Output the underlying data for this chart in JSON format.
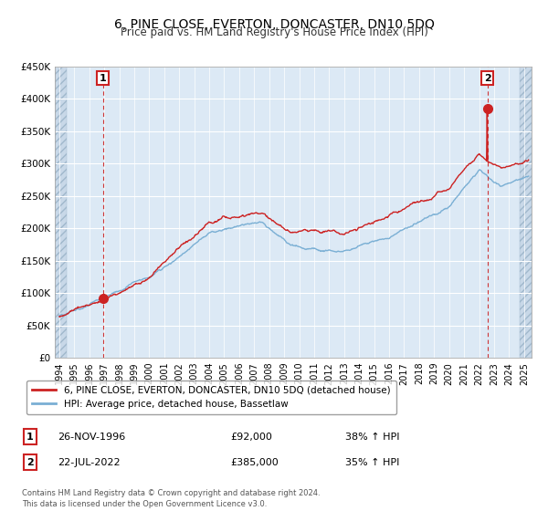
{
  "title": "6, PINE CLOSE, EVERTON, DONCASTER, DN10 5DQ",
  "subtitle": "Price paid vs. HM Land Registry's House Price Index (HPI)",
  "ylim": [
    0,
    450000
  ],
  "yticks": [
    0,
    50000,
    100000,
    150000,
    200000,
    250000,
    300000,
    350000,
    400000,
    450000
  ],
  "ytick_labels": [
    "£0",
    "£50K",
    "£100K",
    "£150K",
    "£200K",
    "£250K",
    "£300K",
    "£350K",
    "£400K",
    "£450K"
  ],
  "xlim_start": 1993.7,
  "xlim_end": 2025.5,
  "xticks": [
    1994,
    1995,
    1996,
    1997,
    1998,
    1999,
    2000,
    2001,
    2002,
    2003,
    2004,
    2005,
    2006,
    2007,
    2008,
    2009,
    2010,
    2011,
    2012,
    2013,
    2014,
    2015,
    2016,
    2017,
    2018,
    2019,
    2020,
    2021,
    2022,
    2023,
    2024,
    2025
  ],
  "sale1_date": 1996.91,
  "sale1_price": 92000,
  "sale1_label": "1",
  "sale1_text": "26-NOV-1996",
  "sale1_amount": "£92,000",
  "sale1_hpi": "38% ↑ HPI",
  "sale2_date": 2022.55,
  "sale2_price": 385000,
  "sale2_label": "2",
  "sale2_text": "22-JUL-2022",
  "sale2_amount": "£385,000",
  "sale2_hpi": "35% ↑ HPI",
  "hpi_color": "#7aafd4",
  "price_color": "#cc2222",
  "plot_bg": "#dce9f5",
  "hatch_bg": "#c8d8e8",
  "legend_label1": "6, PINE CLOSE, EVERTON, DONCASTER, DN10 5DQ (detached house)",
  "legend_label2": "HPI: Average price, detached house, Bassetlaw",
  "footer": "Contains HM Land Registry data © Crown copyright and database right 2024.\nThis data is licensed under the Open Government Licence v3.0."
}
